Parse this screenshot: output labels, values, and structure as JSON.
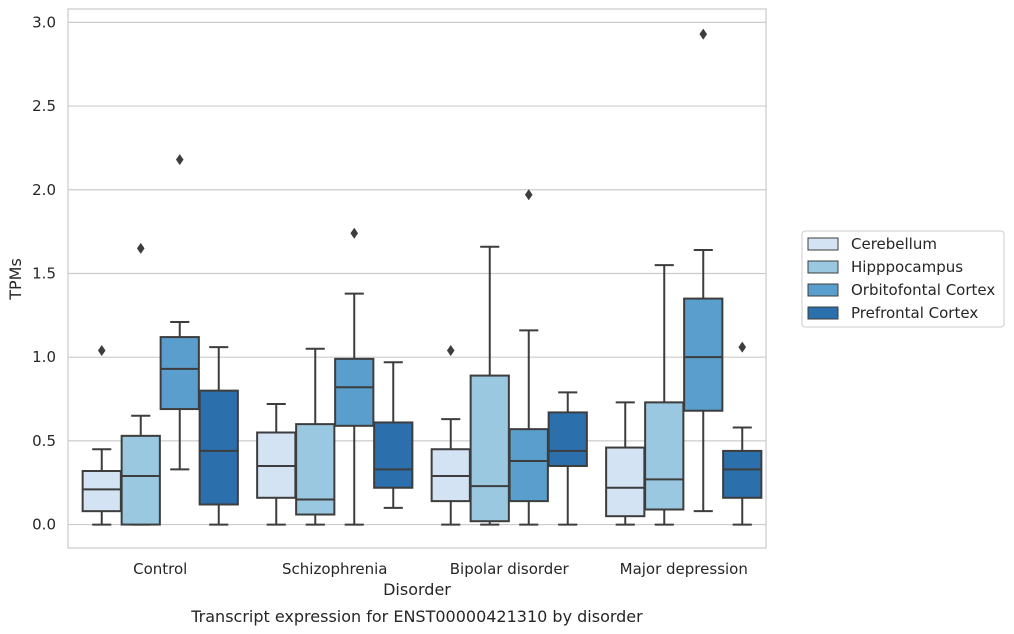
{
  "chart_data": {
    "type": "box",
    "caption": "Transcript expression for ENST00000421310 by disorder",
    "xlabel": "Disorder",
    "ylabel": "TPMs",
    "ylim": [
      -0.14,
      3.08
    ],
    "yticks": [
      "0.0",
      "0.5",
      "1.0",
      "1.5",
      "2.0",
      "2.5",
      "3.0"
    ],
    "grid": "horizontal",
    "legend_position": "right",
    "categories": [
      "Control",
      "Schizophrenia",
      "Bipolar disorder",
      "Major depression"
    ],
    "series": [
      {
        "name": "Cerebellum",
        "color": "#d3e3f3",
        "boxes": [
          {
            "whislo": 0.0,
            "q1": 0.08,
            "median": 0.21,
            "q3": 0.32,
            "whishi": 0.45,
            "fliers": [
              1.04
            ]
          },
          {
            "whislo": 0.0,
            "q1": 0.16,
            "median": 0.35,
            "q3": 0.55,
            "whishi": 0.72,
            "fliers": []
          },
          {
            "whislo": 0.0,
            "q1": 0.14,
            "median": 0.29,
            "q3": 0.45,
            "whishi": 0.63,
            "fliers": [
              1.04
            ]
          },
          {
            "whislo": 0.0,
            "q1": 0.05,
            "median": 0.22,
            "q3": 0.46,
            "whishi": 0.73,
            "fliers": []
          }
        ]
      },
      {
        "name": "Hipppocampus",
        "color": "#9ac8e0",
        "boxes": [
          {
            "whislo": 0.0,
            "q1": 0.0,
            "median": 0.29,
            "q3": 0.53,
            "whishi": 0.65,
            "fliers": [
              1.65
            ]
          },
          {
            "whislo": 0.0,
            "q1": 0.06,
            "median": 0.15,
            "q3": 0.6,
            "whishi": 1.05,
            "fliers": []
          },
          {
            "whislo": 0.0,
            "q1": 0.02,
            "median": 0.23,
            "q3": 0.89,
            "whishi": 1.66,
            "fliers": []
          },
          {
            "whislo": 0.0,
            "q1": 0.09,
            "median": 0.27,
            "q3": 0.73,
            "whishi": 1.55,
            "fliers": []
          }
        ]
      },
      {
        "name": "Orbitofontal Cortex",
        "color": "#5a9ecd",
        "boxes": [
          {
            "whislo": 0.33,
            "q1": 0.69,
            "median": 0.93,
            "q3": 1.12,
            "whishi": 1.21,
            "fliers": [
              2.18
            ]
          },
          {
            "whislo": 0.0,
            "q1": 0.59,
            "median": 0.82,
            "q3": 0.99,
            "whishi": 1.38,
            "fliers": [
              1.74
            ]
          },
          {
            "whislo": 0.0,
            "q1": 0.14,
            "median": 0.38,
            "q3": 0.57,
            "whishi": 1.16,
            "fliers": [
              1.97
            ]
          },
          {
            "whislo": 0.08,
            "q1": 0.68,
            "median": 1.0,
            "q3": 1.35,
            "whishi": 1.64,
            "fliers": [
              2.93
            ]
          }
        ]
      },
      {
        "name": "Prefrontal Cortex",
        "color": "#2c6fad",
        "boxes": [
          {
            "whislo": 0.0,
            "q1": 0.12,
            "median": 0.44,
            "q3": 0.8,
            "whishi": 1.06,
            "fliers": []
          },
          {
            "whislo": 0.1,
            "q1": 0.22,
            "median": 0.33,
            "q3": 0.61,
            "whishi": 0.97,
            "fliers": []
          },
          {
            "whislo": 0.0,
            "q1": 0.35,
            "median": 0.44,
            "q3": 0.67,
            "whishi": 0.79,
            "fliers": []
          },
          {
            "whislo": 0.0,
            "q1": 0.16,
            "median": 0.33,
            "q3": 0.44,
            "whishi": 0.58,
            "fliers": [
              1.06
            ]
          }
        ]
      }
    ]
  }
}
